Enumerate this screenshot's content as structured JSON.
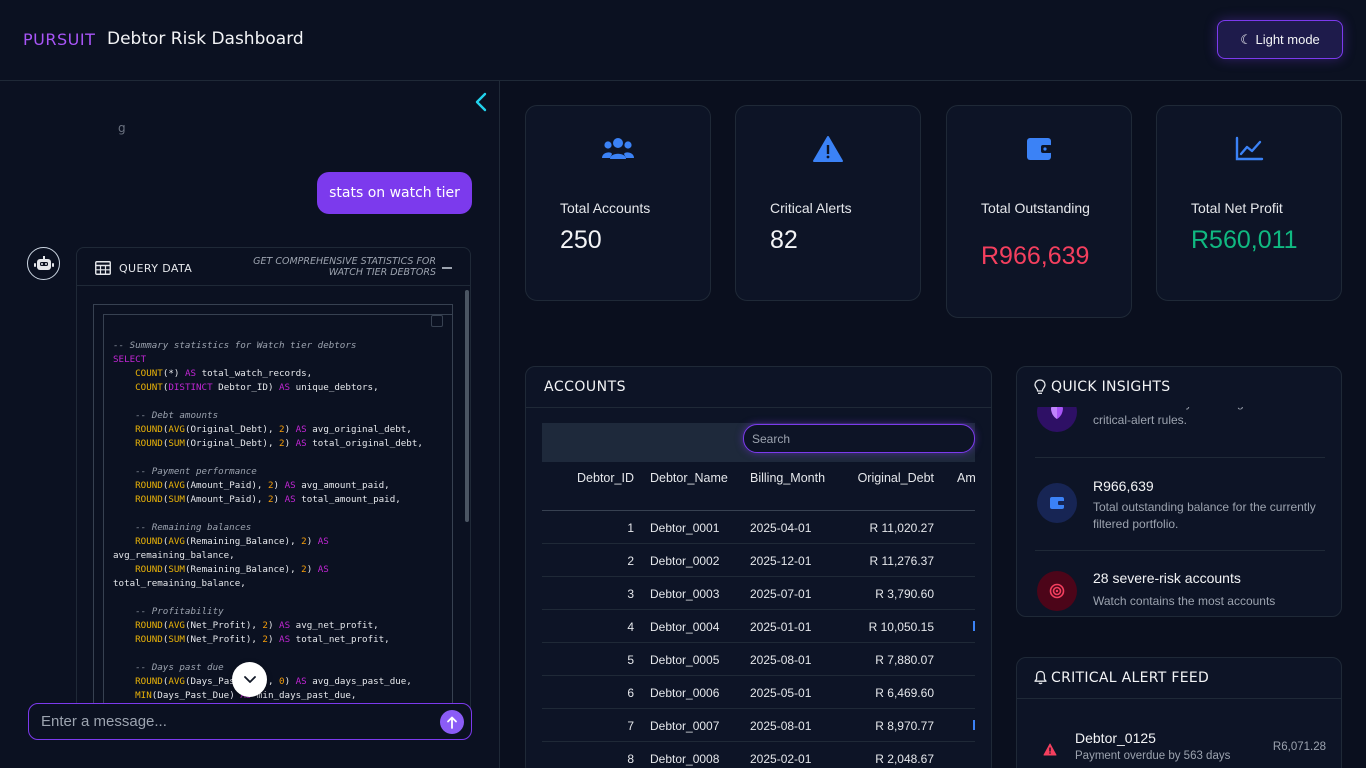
{
  "header": {
    "brand": "PURSUIT",
    "title": "Debtor Risk Dashboard",
    "theme_button": "☾ Light mode"
  },
  "chat": {
    "faded_text": "g",
    "user_message": "stats on watch tier",
    "query_card": {
      "title": "QUERY DATA",
      "description": "GET COMPREHENSIVE STATISTICS FOR WATCH TIER DEBTORS",
      "code_lines": [
        "-- Summary statistics for Watch tier debtors",
        "SELECT",
        "    COUNT(*) AS total_watch_records,",
        "    COUNT(DISTINCT Debtor_ID) AS unique_debtors,",
        "",
        "    -- Debt amounts",
        "    ROUND(AVG(Original_Debt), 2) AS avg_original_debt,",
        "    ROUND(SUM(Original_Debt), 2) AS total_original_debt,",
        "",
        "    -- Payment performance",
        "    ROUND(AVG(Amount_Paid), 2) AS avg_amount_paid,",
        "    ROUND(SUM(Amount_Paid), 2) AS total_amount_paid,",
        "",
        "    -- Remaining balances",
        "    ROUND(AVG(Remaining_Balance), 2) AS",
        "avg_remaining_balance,",
        "    ROUND(SUM(Remaining_Balance), 2) AS",
        "total_remaining_balance,",
        "",
        "    -- Profitability",
        "    ROUND(AVG(Net_Profit), 2) AS avg_net_profit,",
        "    ROUND(SUM(Net_Profit), 2) AS total_net_profit,",
        "",
        "    -- Days past due",
        "    ROUND(AVG(Days_Past_Due), 0) AS avg_days_past_due,",
        "    MIN(Days_Past_Due) AS min_days_past_due,"
      ]
    },
    "input_placeholder": "Enter a message..."
  },
  "stats": [
    {
      "label": "Total Accounts",
      "value": "250",
      "icon": "users-icon",
      "color": "#f3f4f6"
    },
    {
      "label": "Critical Alerts",
      "value": "82",
      "icon": "warning-icon",
      "color": "#f3f4f6"
    },
    {
      "label": "Total Outstanding",
      "value": "R966,639",
      "icon": "wallet-icon",
      "color": "#f43f5e"
    },
    {
      "label": "Total Net Profit",
      "value": "R560,011",
      "icon": "chart-line-icon",
      "color": "#10b981"
    }
  ],
  "accounts": {
    "title": "ACCOUNTS",
    "search_placeholder": "Search",
    "columns": [
      "Debtor_ID",
      "Debtor_Name",
      "Billing_Month",
      "Original_Debt",
      "Am"
    ],
    "rows": [
      [
        "1",
        "Debtor_0001",
        "2025-04-01",
        "R 11,020.27"
      ],
      [
        "2",
        "Debtor_0002",
        "2025-12-01",
        "R 11,276.37"
      ],
      [
        "3",
        "Debtor_0003",
        "2025-07-01",
        "R 3,790.60"
      ],
      [
        "4",
        "Debtor_0004",
        "2025-01-01",
        "R 10,050.15"
      ],
      [
        "5",
        "Debtor_0005",
        "2025-08-01",
        "R 7,880.07"
      ],
      [
        "6",
        "Debtor_0006",
        "2025-05-01",
        "R 6,469.60"
      ],
      [
        "7",
        "Debtor_0007",
        "2025-08-01",
        "R 8,970.77"
      ],
      [
        "8",
        "Debtor_0008",
        "2025-02-01",
        "R 2,048.67"
      ]
    ]
  },
  "insights": {
    "title": "QUICK INSIGHTS",
    "items": [
      {
        "heading": "",
        "text": "Accounts currently matching the active critical-alert rules.",
        "icon": "shield-icon",
        "color": "#a855f7"
      },
      {
        "heading": "R966,639",
        "text": "Total outstanding balance for the currently filtered portfolio.",
        "icon": "wallet-icon",
        "color": "#3b82f6"
      },
      {
        "heading": "28 severe-risk accounts",
        "text": "Watch contains the most accounts",
        "icon": "target-icon",
        "color": "#f43f5e"
      }
    ]
  },
  "alert_feed": {
    "title": "CRITICAL ALERT FEED",
    "items": [
      {
        "name": "Debtor_0125",
        "desc": "Payment overdue by 563 days",
        "amount": "R6,071.28",
        "icon": "warning-icon"
      }
    ]
  }
}
